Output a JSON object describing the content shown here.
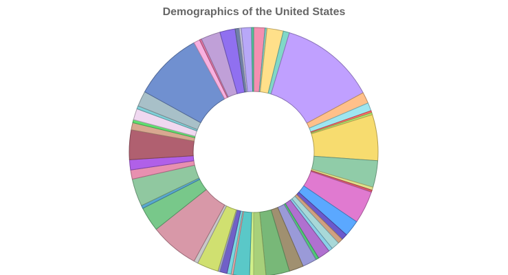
{
  "chart_data": {
    "type": "pie",
    "variant": "doughnut",
    "title": "Demographics of the United States",
    "unit": "share of total",
    "legend": "none",
    "slices": [
      {
        "value": 0.011,
        "color": "#f48fb1"
      },
      {
        "value": 0.002,
        "color": "#80cbc4"
      },
      {
        "value": 0.016,
        "color": "#ffe08a"
      },
      {
        "value": 0.006,
        "color": "#80d8c8"
      },
      {
        "value": 0.094,
        "color": "#c0a0ff"
      },
      {
        "value": 0.011,
        "color": "#ffc08a"
      },
      {
        "value": 0.008,
        "color": "#9ee6f0"
      },
      {
        "value": 0.002,
        "color": "#ff6a6a"
      },
      {
        "value": 0.002,
        "color": "#b5e86e"
      },
      {
        "value": 0.045,
        "color": "#f7dc6f"
      },
      {
        "value": 0.026,
        "color": "#90cca8"
      },
      {
        "value": 0.003,
        "color": "#e0e08a"
      },
      {
        "value": 0.002,
        "color": "#e05a6a"
      },
      {
        "value": 0.032,
        "color": "#e07ad0"
      },
      {
        "value": 0.016,
        "color": "#5ba8ff"
      },
      {
        "value": 0.006,
        "color": "#6a5acd"
      },
      {
        "value": 0.005,
        "color": "#d0a080"
      },
      {
        "value": 0.008,
        "color": "#a8d8d8"
      },
      {
        "value": 0.004,
        "color": "#8ad0e8"
      },
      {
        "value": 0.012,
        "color": "#b070d0"
      },
      {
        "value": 0.003,
        "color": "#50c878"
      },
      {
        "value": 0.014,
        "color": "#9a9ad8"
      },
      {
        "value": 0.014,
        "color": "#a09070"
      },
      {
        "value": 0.023,
        "color": "#78b878"
      },
      {
        "value": 0.012,
        "color": "#a8d07a"
      },
      {
        "value": 0.004,
        "color": "#d0f08a"
      },
      {
        "value": 0.016,
        "color": "#5ac8c8"
      },
      {
        "value": 0.002,
        "color": "#e8a8a8"
      },
      {
        "value": 0.004,
        "color": "#7ad8e0"
      },
      {
        "value": 0.007,
        "color": "#7060c8"
      },
      {
        "value": 0.002,
        "color": "#a0a0d0"
      },
      {
        "value": 0.021,
        "color": "#d0e070"
      },
      {
        "value": 0.004,
        "color": "#c8c8c8"
      },
      {
        "value": 0.048,
        "color": "#d898a8"
      },
      {
        "value": 0.024,
        "color": "#78c88a"
      },
      {
        "value": 0.003,
        "color": "#58a8d0"
      },
      {
        "value": 0.027,
        "color": "#90c8a0"
      },
      {
        "value": 0.009,
        "color": "#e890b0"
      },
      {
        "value": 0.01,
        "color": "#b060e8"
      },
      {
        "value": 0.029,
        "color": "#b06070"
      },
      {
        "value": 0.007,
        "color": "#d8a890"
      },
      {
        "value": 0.003,
        "color": "#60e070"
      },
      {
        "value": 0.011,
        "color": "#f0d8f0"
      },
      {
        "value": 0.003,
        "color": "#80d0d8"
      },
      {
        "value": 0.015,
        "color": "#a8c0c8"
      },
      {
        "value": 0.068,
        "color": "#7090d0"
      },
      {
        "value": 0.006,
        "color": "#f8b0e0"
      },
      {
        "value": 0.002,
        "color": "#e070a0"
      },
      {
        "value": 0.019,
        "color": "#c0a0d8"
      },
      {
        "value": 0.015,
        "color": "#9070f0"
      },
      {
        "value": 0.004,
        "color": "#7080a8"
      },
      {
        "value": 0.002,
        "color": "#c8c8e0"
      },
      {
        "value": 0.01,
        "color": "#b8a8f8"
      },
      {
        "value": 0.002,
        "color": "#58c8a0"
      }
    ]
  }
}
